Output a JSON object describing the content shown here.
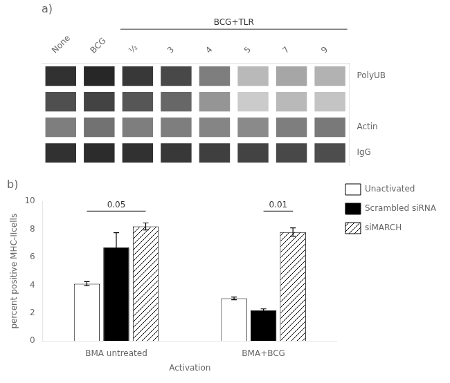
{
  "chart_data": [
    {
      "type": "heatmap",
      "title": "a)",
      "categories": [
        "None",
        "BCG",
        "½",
        "3",
        "4",
        "5",
        "7",
        "9"
      ],
      "y_categories": [
        "PolyUB",
        null,
        "Actin",
        "IgG"
      ],
      "cells": [
        [
          0.88,
          0.92,
          0.85,
          0.78,
          0.55,
          0.3,
          0.38,
          0.33
        ],
        [
          0.75,
          0.8,
          0.72,
          0.65,
          0.45,
          0.22,
          0.3,
          0.25
        ],
        [
          0.55,
          0.6,
          0.55,
          0.55,
          0.52,
          0.5,
          0.55,
          0.57
        ],
        [
          0.88,
          0.9,
          0.88,
          0.85,
          0.82,
          0.8,
          0.78,
          0.76
        ]
      ],
      "annotations": [
        {
          "text": "BCG+TLR",
          "from": "½",
          "to": "9"
        }
      ],
      "grid": false
    },
    {
      "type": "bar",
      "title": "b)",
      "categories": [
        "BMA untreated",
        "BMA+BCG"
      ],
      "series": [
        {
          "name": "Unactivated",
          "color": "white",
          "values": [
            4.1,
            3.05
          ],
          "errors": [
            0.15,
            0.1
          ]
        },
        {
          "name": "Scrambled siRNA",
          "color": "black",
          "values": [
            6.7,
            2.2
          ],
          "errors": [
            1.05,
            0.1
          ]
        },
        {
          "name": "siMARCH",
          "color": "white",
          "values": [
            8.2,
            7.8
          ],
          "errors": [
            0.25,
            0.3
          ]
        }
      ],
      "xlabel": "Activation",
      "ylabel": "percent positive MHC-IIcells",
      "ylim": [
        0,
        10
      ],
      "yticks": [
        0,
        2,
        4,
        6,
        8,
        10
      ],
      "grid": false,
      "legend": "right",
      "annotations": [
        {
          "text": "0.05",
          "category": "BMA untreated",
          "from": "Unactivated",
          "to": "siMARCH",
          "y": 9.3
        },
        {
          "text": "0.01",
          "category": "BMA+BCG",
          "from": "Scrambled siRNA",
          "to": "siMARCH",
          "y": 9.3
        }
      ]
    }
  ]
}
